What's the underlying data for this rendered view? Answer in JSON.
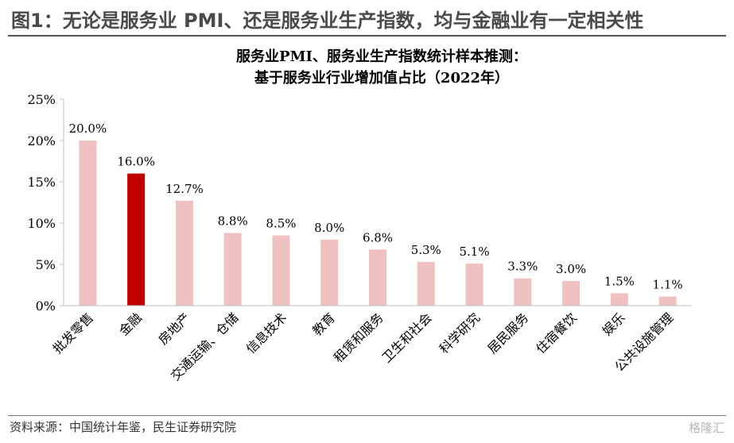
{
  "header": {
    "title": "图1：无论是服务业 PMI、还是服务业生产指数，均与金融业有一定相关性"
  },
  "chart_data": {
    "type": "bar",
    "title": "服务业PMI、服务业生产指数统计样本推测：",
    "subtitle": "基于服务业行业增加值占比（2022年）",
    "categories": [
      "批发零售",
      "金融",
      "房地产",
      "交通运输、仓储",
      "信息技术",
      "教育",
      "租赁和服务",
      "卫生和社会",
      "科学研究",
      "居民服务",
      "住宿餐饮",
      "娱乐",
      "公共设施管理"
    ],
    "values": [
      20.0,
      16.0,
      12.7,
      8.8,
      8.5,
      8.0,
      6.8,
      5.3,
      5.1,
      3.3,
      3.0,
      1.5,
      1.1
    ],
    "data_labels": [
      "20.0%",
      "16.0%",
      "12.7%",
      "8.8%",
      "8.5%",
      "8.0%",
      "6.8%",
      "5.3%",
      "5.1%",
      "3.3%",
      "3.0%",
      "1.5%",
      "1.1%"
    ],
    "highlight_index": 1,
    "yticks": [
      0,
      5,
      10,
      15,
      20,
      25
    ],
    "ytick_labels": [
      "0%",
      "5%",
      "10%",
      "15%",
      "20%",
      "25%"
    ],
    "ylim": [
      0,
      25
    ],
    "xlabel": "",
    "ylabel": "",
    "grid": false,
    "legend": "none",
    "colors": {
      "bar": "#efc1c1",
      "highlight": "#c00000",
      "axis": "#bfbfbf"
    }
  },
  "footer": {
    "source": "资料来源：中国统计年鉴，民生证券研究院",
    "watermark": "格隆汇"
  }
}
